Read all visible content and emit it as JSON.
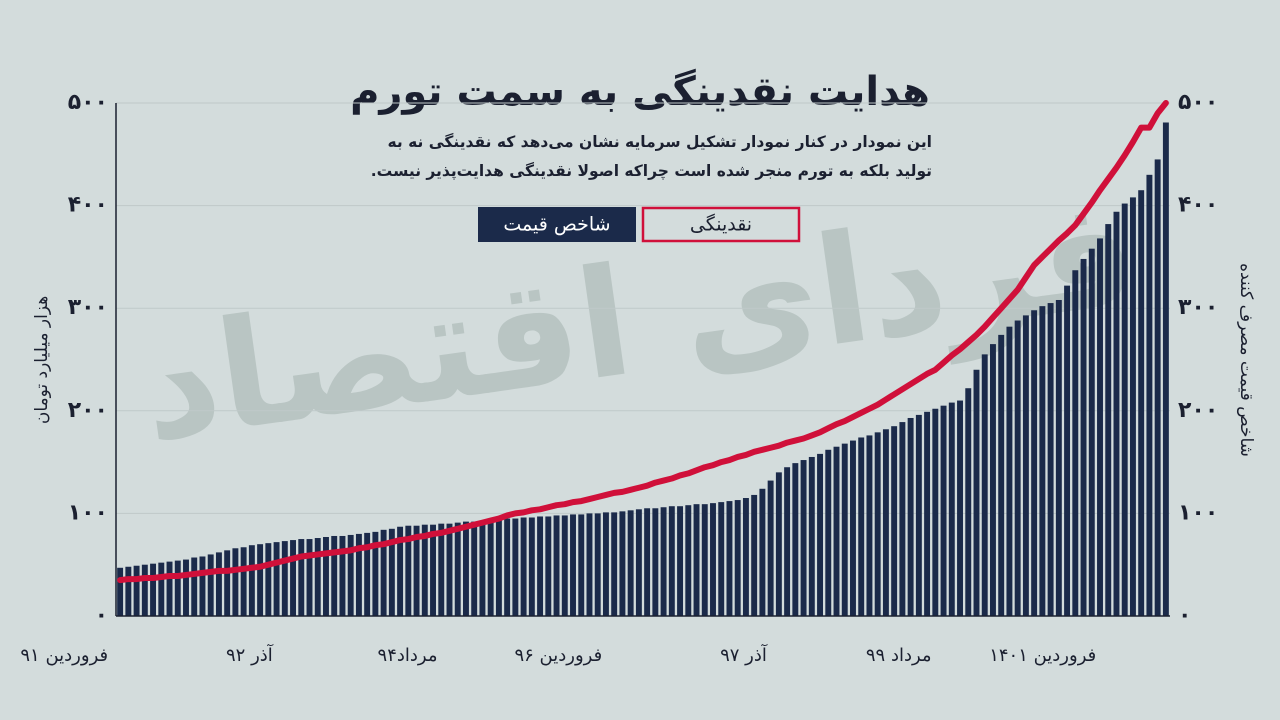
{
  "chart_data": {
    "type": "bar",
    "title": "هدایت نقدینگی به سمت تورم",
    "subtitle": "این نمودار در کنار نمودار تشکیل سرمایه نشان می‌دهد که نقدینگی نه به تولید بلکه به تورم منجر شده است چراکه اصولا نقدینگی هدایت‌پذیر نیست.",
    "watermark": "فردای اقتصاد",
    "y_label": "هزار میلیارد تومان",
    "y2_label": "شاخص قیمت مصرف کننده",
    "categories": [
      "فروردین ۹۱",
      null,
      null,
      null,
      null,
      null,
      null,
      null,
      null,
      null,
      null,
      null,
      null,
      null,
      null,
      null,
      null,
      null,
      null,
      null,
      "آذر ۹۲",
      null,
      null,
      null,
      null,
      null,
      null,
      null,
      null,
      null,
      null,
      null,
      null,
      null,
      null,
      null,
      null,
      null,
      null,
      null,
      "مرداد۹۴",
      null,
      null,
      null,
      null,
      null,
      null,
      null,
      null,
      null,
      null,
      null,
      null,
      null,
      null,
      null,
      null,
      null,
      null,
      null,
      "فروردین ۹۶",
      null,
      null,
      null,
      null,
      null,
      null,
      null,
      null,
      null,
      null,
      null,
      null,
      null,
      null,
      null,
      null,
      null,
      null,
      null,
      "آذر ۹۷",
      null,
      null,
      null,
      null,
      null,
      null,
      null,
      null,
      null,
      null,
      null,
      null,
      null,
      null,
      null,
      null,
      null,
      null,
      null,
      "مرداد ۹۹",
      null,
      null,
      null,
      null,
      null,
      null,
      null,
      null,
      null,
      null,
      null,
      null,
      null,
      null,
      null,
      null,
      null,
      null,
      null,
      "فروردین ۱۴۰۱",
      null,
      null,
      null,
      null,
      null,
      null,
      null
    ],
    "series": [
      {
        "name": "شاخص قیمت",
        "type": "bar",
        "axis": "y2",
        "color": "#1b2a4a",
        "values": [
          47,
          48,
          49,
          50,
          51,
          52,
          53,
          54,
          55,
          57,
          58,
          60,
          62,
          64,
          66,
          67,
          69,
          70,
          71,
          72,
          73,
          74,
          75,
          75,
          76,
          77,
          78,
          78,
          79,
          80,
          81,
          82,
          84,
          85,
          87,
          88,
          88,
          89,
          89,
          90,
          90,
          91,
          92,
          92,
          93,
          94,
          94,
          95,
          95,
          96,
          96,
          97,
          97,
          98,
          98,
          99,
          99,
          100,
          100,
          101,
          101,
          102,
          103,
          104,
          105,
          105,
          106,
          107,
          107,
          108,
          109,
          109,
          110,
          111,
          112,
          113,
          115,
          118,
          124,
          132,
          140,
          145,
          149,
          152,
          155,
          158,
          162,
          165,
          168,
          171,
          174,
          176,
          179,
          182,
          185,
          189,
          193,
          196,
          199,
          202,
          205,
          208,
          210,
          222,
          240,
          255,
          265,
          274,
          282,
          288,
          293,
          298,
          302,
          305,
          308,
          322,
          337,
          348,
          358,
          368,
          382,
          394,
          402,
          408,
          415,
          430,
          445,
          481
        ]
      },
      {
        "name": "نقدینگی",
        "type": "line",
        "axis": "y",
        "color": "#d0103a",
        "values": [
          35,
          36,
          36,
          37,
          37,
          38,
          39,
          39,
          40,
          41,
          42,
          43,
          44,
          44,
          45,
          46,
          47,
          48,
          50,
          52,
          54,
          56,
          58,
          59,
          60,
          61,
          62,
          63,
          64,
          66,
          67,
          69,
          70,
          72,
          74,
          75,
          77,
          78,
          80,
          81,
          83,
          85,
          87,
          89,
          91,
          93,
          95,
          98,
          100,
          101,
          103,
          104,
          106,
          108,
          109,
          111,
          112,
          114,
          116,
          118,
          120,
          121,
          123,
          125,
          127,
          130,
          132,
          134,
          137,
          139,
          142,
          145,
          147,
          150,
          152,
          155,
          157,
          160,
          162,
          164,
          166,
          169,
          171,
          173,
          176,
          179,
          183,
          187,
          190,
          194,
          198,
          202,
          206,
          211,
          216,
          221,
          226,
          231,
          236,
          240,
          247,
          254,
          260,
          267,
          274,
          282,
          291,
          300,
          309,
          318,
          330,
          342,
          350,
          358,
          366,
          373,
          381,
          392,
          403,
          415,
          426,
          437,
          449,
          462,
          476,
          476,
          490,
          500
        ]
      }
    ],
    "ylim": [
      0,
      500
    ],
    "yticks": [
      {
        "value": 0,
        "label": "۰"
      },
      {
        "value": 100,
        "label": "۱۰۰"
      },
      {
        "value": 200,
        "label": "۲۰۰"
      },
      {
        "value": 300,
        "label": "۳۰۰"
      },
      {
        "value": 400,
        "label": "۴۰۰"
      },
      {
        "value": 500,
        "label": "۵۰۰"
      }
    ],
    "y2lim": [
      0,
      500
    ],
    "y2ticks": [
      {
        "value": 0,
        "label": "۰"
      },
      {
        "value": 100,
        "label": "۱۰۰"
      },
      {
        "value": 200,
        "label": "۲۰۰"
      },
      {
        "value": 300,
        "label": "۳۰۰"
      },
      {
        "value": 400,
        "label": "۴۰۰"
      },
      {
        "value": 500,
        "label": "۵۰۰"
      }
    ],
    "grid": true
  }
}
